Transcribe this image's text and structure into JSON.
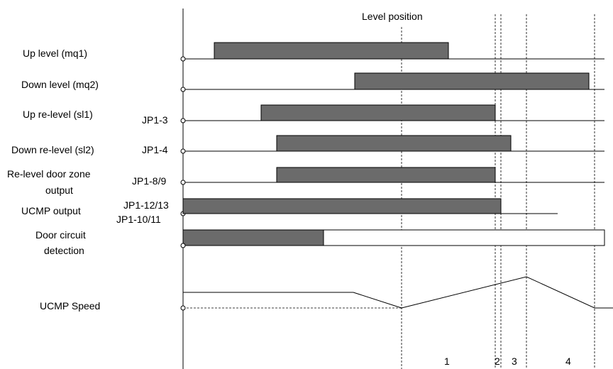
{
  "title": "Level position",
  "colors": {
    "bar_fill": "#6b6b6b",
    "line": "#000000",
    "background": "#ffffff"
  },
  "signals": [
    {
      "label": "Up level (mq1)",
      "pin": ""
    },
    {
      "label": "Down level (mq2)",
      "pin": ""
    },
    {
      "label": "Up re-level (sl1)",
      "pin": "JP1-3"
    },
    {
      "label": "Down re-level (sl2)",
      "pin": "JP1-4"
    },
    {
      "label_lines": [
        "Re-level door zone",
        "output"
      ],
      "pin": "JP1-8/9"
    },
    {
      "label": "UCMP output",
      "pin_lines": [
        "JP1-12/13",
        "JP1-10/11"
      ]
    },
    {
      "label_lines": [
        "Door circuit",
        "detection"
      ],
      "pin": ""
    },
    {
      "label": "UCMP Speed",
      "pin": ""
    }
  ],
  "zones": [
    "1",
    "2",
    "3",
    "4"
  ]
}
